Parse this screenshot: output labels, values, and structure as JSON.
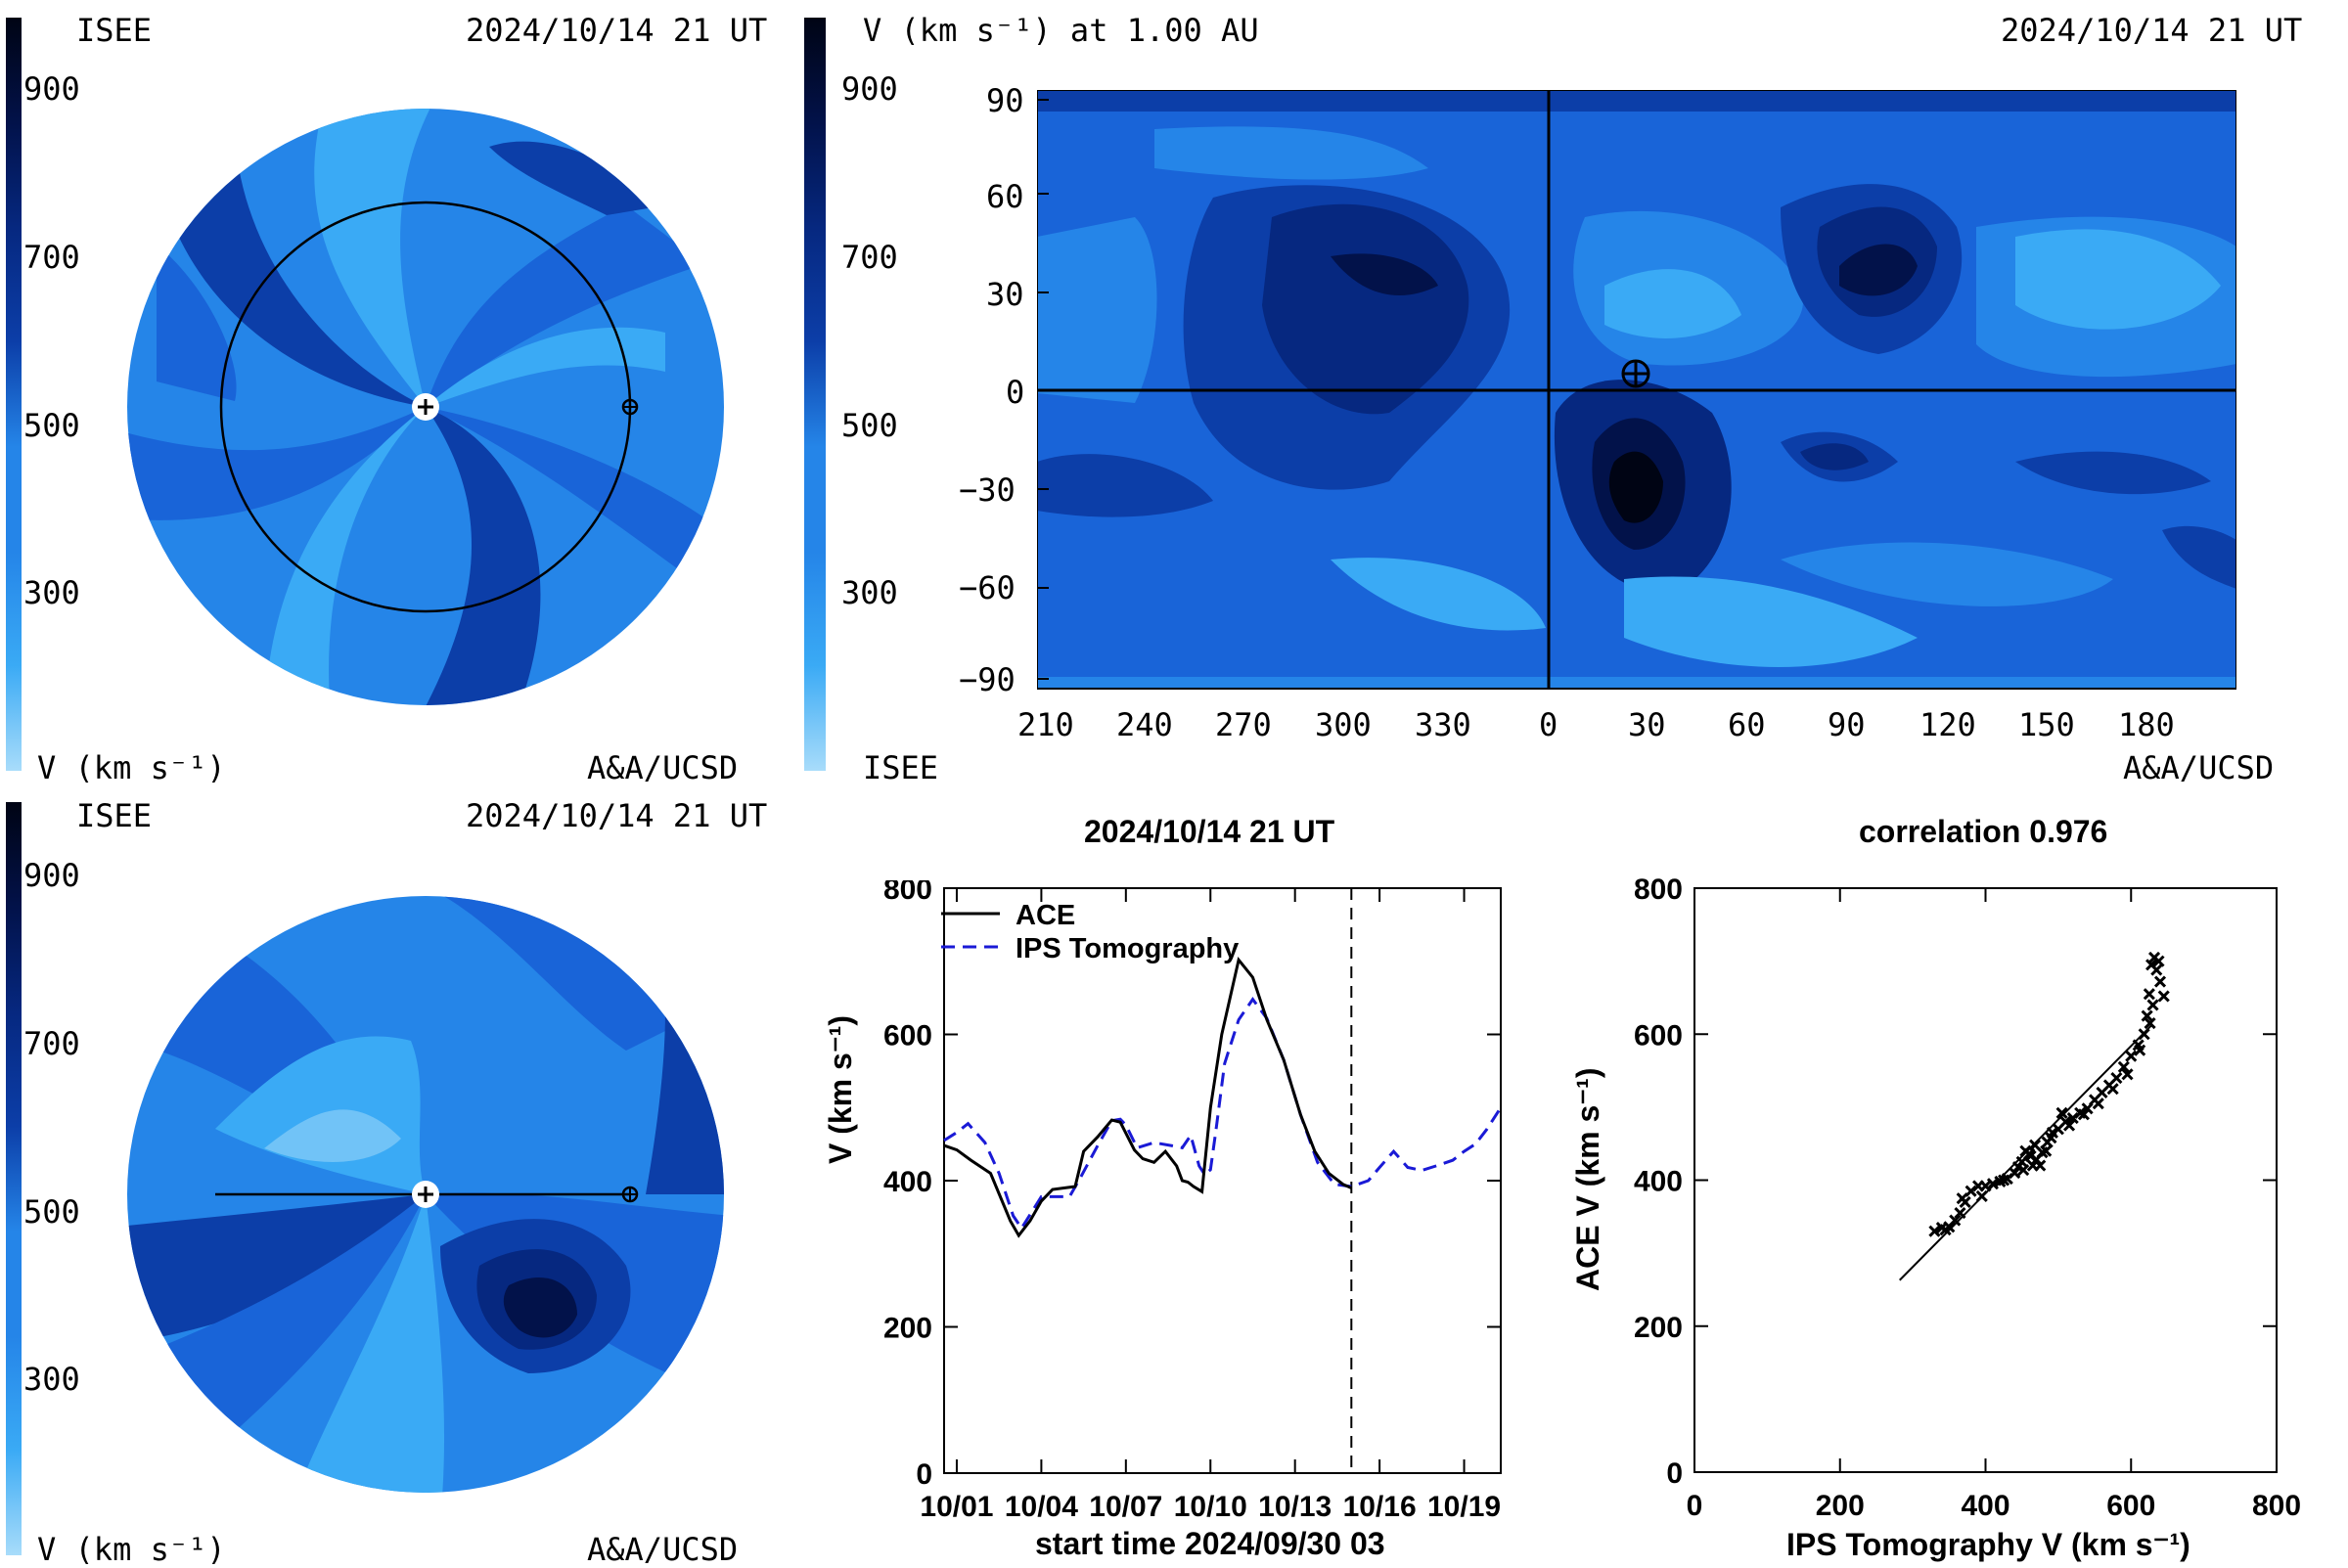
{
  "palette": [
    "#a8dcfa",
    "#3aaaf5",
    "#2585e8",
    "#1964d8",
    "#0c3ea8",
    "#062880",
    "#02124a",
    "#000414"
  ],
  "colorbar_ticks": [
    "900",
    "700",
    "500",
    "300"
  ],
  "panel_tl": {
    "label_left": "ISEE",
    "timestamp": "2024/10/14 21 UT",
    "footer_left": "V (km s⁻¹)",
    "footer_right": "A&A/UCSD"
  },
  "panel_tr": {
    "title": "V (km s⁻¹) at 1.00 AU",
    "timestamp": "2024/10/14 21 UT",
    "footer_left": "ISEE",
    "footer_right": "A&A/UCSD",
    "y_ticks": [
      "90",
      "60",
      "30",
      "0",
      "−30",
      "−60",
      "−90"
    ],
    "x_ticks": [
      "210",
      "240",
      "270",
      "300",
      "330",
      "0",
      "30",
      "60",
      "90",
      "120",
      "150",
      "180"
    ]
  },
  "panel_bl": {
    "label_left": "ISEE",
    "timestamp": "2024/10/14 21 UT",
    "footer_left": "V (km s⁻¹)",
    "footer_right": "A&A/UCSD"
  },
  "chart_data": [
    {
      "type": "line",
      "title": "2024/10/14 21 UT",
      "xlabel": "start time 2024/09/30 03",
      "ylabel": "V (km s⁻¹)",
      "x_tick_labels": [
        "10/01",
        "10/04",
        "10/07",
        "10/10",
        "10/13",
        "10/16",
        "10/19"
      ],
      "y_ticks": [
        "0",
        "200",
        "400",
        "600",
        "800"
      ],
      "xlim": [
        0.55,
        20.3
      ],
      "ylim": [
        0,
        800
      ],
      "current_time": 15.0,
      "legend_position": "top-left",
      "series": [
        {
          "name": "ACE",
          "style": "solid",
          "color": "#000000",
          "x": [
            0.55,
            1.0,
            1.5,
            2.2,
            2.9,
            3.2,
            3.6,
            4.0,
            4.4,
            5.2,
            5.5,
            6.0,
            6.5,
            6.8,
            7.0,
            7.3,
            7.6,
            8.0,
            8.4,
            8.8,
            9.0,
            9.2,
            9.4,
            9.7,
            10.0,
            10.4,
            11.0,
            11.5,
            12.0,
            12.6,
            13.2,
            13.7,
            14.2,
            14.7,
            15.0
          ],
          "y": [
            448,
            442,
            428,
            410,
            345,
            325,
            345,
            372,
            388,
            392,
            440,
            460,
            483,
            480,
            465,
            442,
            430,
            425,
            440,
            420,
            400,
            398,
            392,
            385,
            500,
            600,
            702,
            678,
            620,
            565,
            490,
            440,
            410,
            395,
            390
          ]
        },
        {
          "name": "IPS Tomography",
          "style": "dashed",
          "color": "#1a1ad6",
          "x": [
            0.55,
            1.0,
            1.4,
            2.0,
            2.5,
            3.0,
            3.3,
            4.0,
            4.5,
            5.0,
            5.4,
            6.0,
            6.5,
            6.8,
            7.0,
            7.4,
            8.0,
            8.6,
            9.0,
            9.3,
            9.6,
            9.8,
            10.0,
            10.2,
            10.5,
            11.0,
            11.5,
            12.0,
            12.6,
            13.2,
            13.8,
            14.4,
            15.0,
            15.6,
            16.0,
            16.5,
            17.0,
            17.5,
            18.0,
            18.6,
            19.0,
            19.4,
            19.8,
            20.3
          ],
          "y": [
            455,
            466,
            478,
            452,
            410,
            352,
            335,
            378,
            378,
            378,
            405,
            448,
            482,
            484,
            476,
            445,
            452,
            448,
            445,
            462,
            420,
            408,
            415,
            470,
            560,
            620,
            648,
            622,
            565,
            490,
            425,
            395,
            392,
            400,
            418,
            440,
            418,
            414,
            420,
            428,
            440,
            450,
            470,
            500
          ]
        }
      ]
    },
    {
      "type": "scatter",
      "title": "correlation 0.976",
      "xlabel": "IPS Tomography V (km s⁻¹)",
      "ylabel": "ACE V (km s⁻¹)",
      "x_ticks": [
        "0",
        "200",
        "400",
        "600",
        "800"
      ],
      "y_ticks": [
        "0",
        "200",
        "400",
        "600",
        "800"
      ],
      "xlim": [
        0,
        800
      ],
      "ylim": [
        0,
        800
      ],
      "fit_line": {
        "x": [
          282,
          628
        ],
        "y": [
          263,
          612
        ]
      },
      "points": {
        "x": [
          330,
          340,
          350,
          358,
          365,
          372,
          380,
          390,
          400,
          410,
          420,
          430,
          440,
          445,
          450,
          455,
          460,
          465,
          470,
          478,
          485,
          492,
          500,
          510,
          520,
          530,
          540,
          550,
          560,
          570,
          580,
          590,
          600,
          610,
          618,
          622,
          625,
          628,
          632,
          635,
          640,
          645,
          345,
          368,
          395,
          425,
          452,
          462,
          468,
          475,
          483,
          490,
          505,
          515,
          535,
          555,
          575,
          595,
          612,
          626,
          630,
          638
        ],
        "y": [
          330,
          335,
          336,
          345,
          355,
          370,
          385,
          392,
          392,
          395,
          398,
          402,
          410,
          418,
          425,
          440,
          436,
          420,
          428,
          438,
          452,
          465,
          470,
          480,
          485,
          492,
          498,
          510,
          520,
          530,
          540,
          555,
          570,
          585,
          600,
          625,
          655,
          695,
          705,
          688,
          672,
          652,
          332,
          375,
          378,
          400,
          414,
          433,
          448,
          420,
          440,
          458,
          492,
          475,
          490,
          505,
          525,
          545,
          578,
          615,
          640,
          700
        ]
      }
    }
  ]
}
